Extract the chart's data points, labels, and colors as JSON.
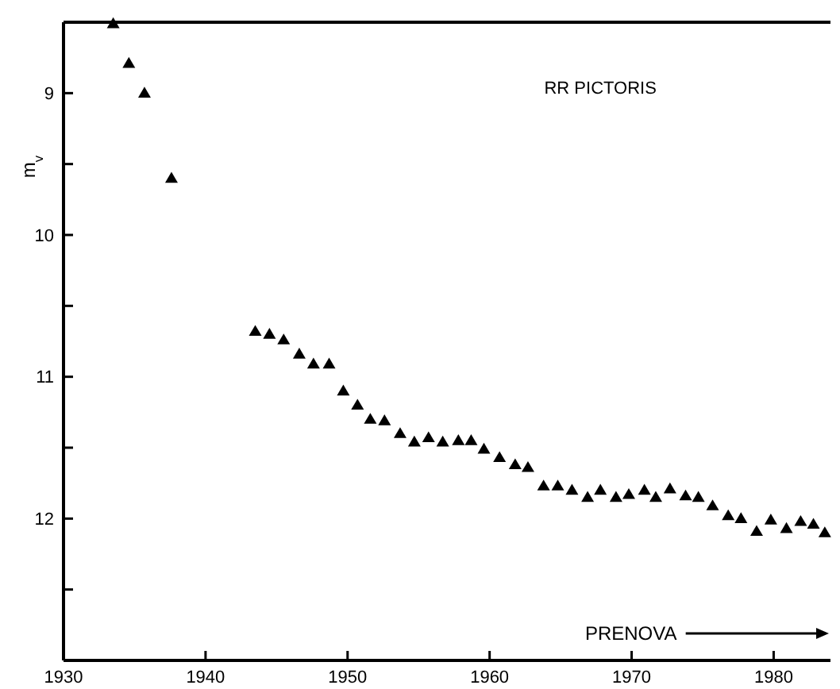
{
  "chart_data": {
    "type": "scatter",
    "ylabel": "m$_{v}$",
    "marker": "triangle",
    "annotations": [
      "RR PICTORIS",
      "PRENOVA"
    ],
    "xlim": [
      1930,
      1984
    ],
    "xticks": [
      1930,
      1940,
      1950,
      1960,
      1970,
      1980
    ],
    "ylim": [
      13,
      8.5
    ],
    "yticks": [
      {
        "value": 8.5,
        "label": null
      },
      9,
      {
        "value": 9.5,
        "label": null
      },
      10,
      {
        "value": 10.5,
        "label": null
      },
      11,
      {
        "value": 11.5,
        "label": null
      },
      12,
      {
        "value": 12.5,
        "label": null
      }
    ],
    "series": [
      {
        "color": "#000000",
        "x": [
          1933.5,
          1934.6,
          1935.7,
          1937.6,
          1943.5,
          1944.5,
          1945.5,
          1946.6,
          1947.6,
          1948.7,
          1949.7,
          1950.7,
          1951.6,
          1952.6,
          1953.7,
          1954.7,
          1955.7,
          1956.7,
          1957.8,
          1958.7,
          1959.6,
          1960.7,
          1961.8,
          1962.7,
          1963.8,
          1964.8,
          1965.8,
          1966.9,
          1967.8,
          1968.9,
          1969.8,
          1970.9,
          1971.7,
          1972.7,
          1973.8,
          1974.7,
          1975.7,
          1976.8,
          1977.7,
          1978.8,
          1979.8,
          1980.9,
          1981.9,
          1982.8,
          1983.6
        ],
        "values": [
          8.51,
          8.79,
          9.0,
          9.6,
          10.68,
          10.7,
          10.74,
          10.84,
          10.91,
          10.91,
          11.1,
          11.2,
          11.3,
          11.31,
          11.4,
          11.46,
          11.43,
          11.46,
          11.45,
          11.45,
          11.51,
          11.57,
          11.62,
          11.64,
          11.77,
          11.77,
          11.8,
          11.85,
          11.8,
          11.85,
          11.83,
          11.8,
          11.85,
          11.79,
          11.84,
          11.85,
          11.91,
          11.98,
          12.0,
          12.09,
          12.01,
          12.07,
          12.02,
          12.04,
          12.1
        ]
      }
    ]
  }
}
